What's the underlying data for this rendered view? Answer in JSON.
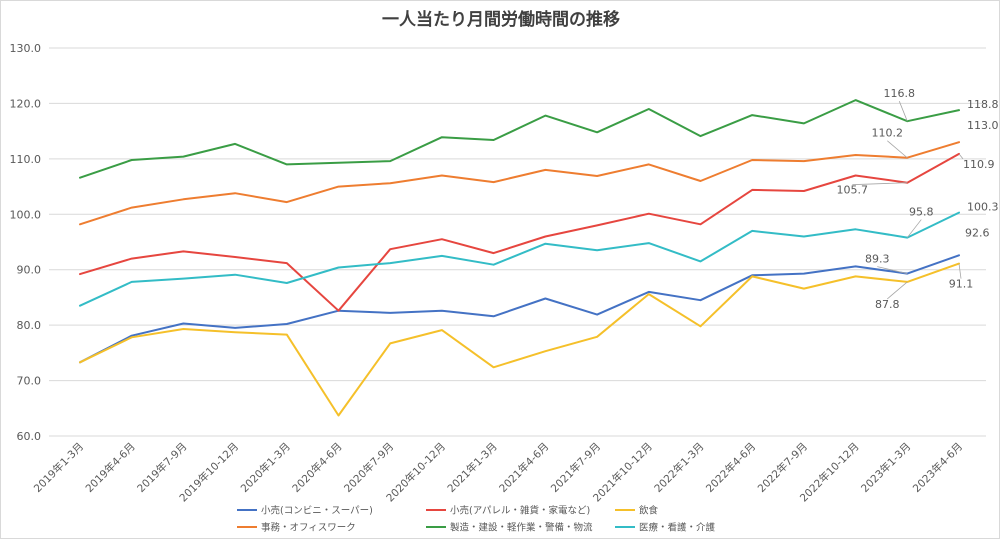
{
  "chart_data": {
    "type": "line",
    "title": "一人当たり月間労働時間の推移",
    "xlabel": "",
    "ylabel": "",
    "ylim": [
      60,
      130
    ],
    "yticks": [
      "60.0",
      "70.0",
      "80.0",
      "90.0",
      "100.0",
      "110.0",
      "120.0",
      "130.0"
    ],
    "grid": true,
    "legend_position": "bottom",
    "categories": [
      "2019年1-3月",
      "2019年4-6月",
      "2019年7-9月",
      "2019年10-12月",
      "2020年1-3月",
      "2020年4-6月",
      "2020年7-9月",
      "2020年10-12月",
      "2021年1-3月",
      "2021年4-6月",
      "2021年7-9月",
      "2021年10-12月",
      "2022年1-3月",
      "2022年4-6月",
      "2022年7-9月",
      "2022年10-12月",
      "2023年1-3月",
      "2023年4-6月"
    ],
    "series": [
      {
        "name": "小売(コンビニ・スーパー)",
        "color": "#4472c4",
        "values": [
          73.3,
          78.1,
          80.3,
          79.5,
          80.2,
          82.6,
          82.2,
          82.6,
          81.6,
          84.8,
          81.9,
          86.0,
          84.5,
          89.0,
          89.3,
          90.6,
          89.3,
          92.6
        ]
      },
      {
        "name": "小売(アパレル・雑貨・家電など)",
        "color": "#e6463f",
        "values": [
          89.2,
          92.0,
          93.3,
          92.3,
          91.2,
          82.6,
          93.7,
          95.5,
          93.0,
          96.0,
          98.0,
          100.1,
          98.2,
          104.4,
          104.2,
          107.0,
          105.7,
          110.9
        ]
      },
      {
        "name": "飲食",
        "color": "#f5c02a",
        "values": [
          73.3,
          77.8,
          79.3,
          78.7,
          78.3,
          63.7,
          76.7,
          79.1,
          72.4,
          75.3,
          77.9,
          85.6,
          79.8,
          88.8,
          86.6,
          88.8,
          87.8,
          91.1
        ]
      },
      {
        "name": "事務・オフィスワーク",
        "color": "#ee7d30",
        "values": [
          98.2,
          101.2,
          102.7,
          103.8,
          102.2,
          105.0,
          105.6,
          107.0,
          105.8,
          108.0,
          106.9,
          109.0,
          106.0,
          109.8,
          109.6,
          110.7,
          110.2,
          113.0
        ]
      },
      {
        "name": "製造・建設・軽作業・警備・物流",
        "color": "#3a9d45",
        "values": [
          106.6,
          109.8,
          110.4,
          112.7,
          109.0,
          109.3,
          109.6,
          113.9,
          113.4,
          117.8,
          114.8,
          119.0,
          114.1,
          117.9,
          116.4,
          120.6,
          116.8,
          118.8
        ]
      },
      {
        "name": "医療・看護・介護",
        "color": "#33bcc6",
        "values": [
          83.5,
          87.8,
          88.4,
          89.1,
          87.6,
          90.4,
          91.2,
          92.5,
          90.9,
          94.7,
          93.5,
          94.8,
          91.5,
          97.0,
          96.0,
          97.3,
          95.8,
          100.3
        ]
      }
    ],
    "data_labels": [
      {
        "series": 4,
        "index": 16,
        "text": "116.8"
      },
      {
        "series": 4,
        "index": 17,
        "text": "118.8"
      },
      {
        "series": 3,
        "index": 16,
        "text": "110.2"
      },
      {
        "series": 3,
        "index": 17,
        "text": "113.0"
      },
      {
        "series": 1,
        "index": 16,
        "text": "105.7"
      },
      {
        "series": 1,
        "index": 17,
        "text": "110.9"
      },
      {
        "series": 5,
        "index": 16,
        "text": "95.8"
      },
      {
        "series": 5,
        "index": 17,
        "text": "100.3"
      },
      {
        "series": 0,
        "index": 16,
        "text": "89.3"
      },
      {
        "series": 0,
        "index": 17,
        "text": "92.6"
      },
      {
        "series": 2,
        "index": 16,
        "text": "87.8"
      },
      {
        "series": 2,
        "index": 17,
        "text": "91.1"
      }
    ]
  }
}
